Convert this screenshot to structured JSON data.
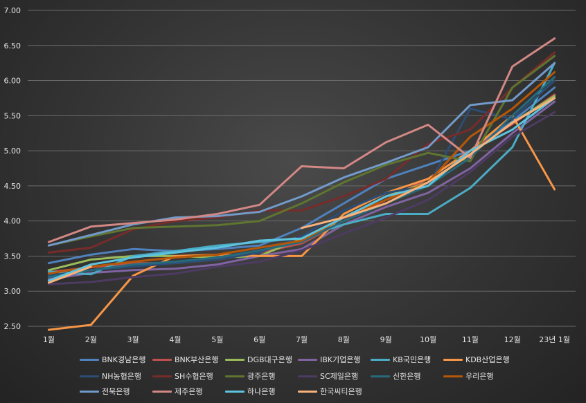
{
  "chart_data": {
    "type": "line",
    "title": "",
    "xlabel": "",
    "ylabel": "",
    "categories": [
      "1월",
      "2월",
      "3월",
      "4월",
      "5월",
      "6월",
      "7월",
      "8월",
      "9월",
      "10월",
      "11월",
      "12월",
      "23년 1월"
    ],
    "ylim": [
      2.5,
      7.0
    ],
    "yticks": [
      "2.50",
      "3.00",
      "3.50",
      "4.00",
      "4.50",
      "5.00",
      "5.50",
      "6.00",
      "6.50",
      "7.00"
    ],
    "grid": true,
    "legend_position": "bottom",
    "series": [
      {
        "name": "BNK경남은행",
        "color": "#4f81bd",
        "values": [
          3.4,
          3.52,
          3.6,
          3.57,
          3.6,
          3.65,
          3.9,
          4.25,
          4.6,
          4.8,
          5.0,
          5.42,
          5.9
        ]
      },
      {
        "name": "BNK부산은행",
        "color": "#c0504d",
        "values": [
          3.27,
          3.34,
          3.4,
          3.4,
          3.45,
          3.55,
          3.68,
          4.0,
          4.3,
          4.6,
          5.0,
          5.38,
          5.8
        ]
      },
      {
        "name": "DGB대구은행",
        "color": "#9bbb59",
        "values": [
          3.3,
          3.45,
          3.5,
          3.5,
          3.48,
          3.5,
          3.75,
          4.05,
          4.35,
          4.55,
          4.95,
          5.4,
          5.78
        ]
      },
      {
        "name": "IBK기업은행",
        "color": "#8064a2",
        "values": [
          3.17,
          3.26,
          3.3,
          3.32,
          3.38,
          3.5,
          3.6,
          3.95,
          4.2,
          4.4,
          4.75,
          5.25,
          5.7
        ]
      },
      {
        "name": "KB국민은행",
        "color": "#4bacc6",
        "values": [
          3.28,
          3.24,
          3.5,
          3.57,
          3.65,
          3.7,
          3.76,
          3.95,
          4.1,
          4.1,
          4.47,
          5.05,
          6.25
        ]
      },
      {
        "name": "KDB산업은행",
        "color": "#f79646",
        "values": [
          2.45,
          2.52,
          3.22,
          3.5,
          3.52,
          3.5,
          3.5,
          4.1,
          4.4,
          4.6,
          5.0,
          5.5,
          4.45
        ]
      },
      {
        "name": "NH농협은행",
        "color": "#2c4d75",
        "values": [
          3.22,
          3.3,
          3.35,
          3.4,
          3.45,
          3.55,
          3.78,
          4.15,
          4.4,
          4.5,
          5.6,
          5.45,
          6.0
        ]
      },
      {
        "name": "SH수협은행",
        "color": "#772c2a",
        "values": [
          3.55,
          3.62,
          3.88,
          4.0,
          4.05,
          4.15,
          4.15,
          4.35,
          4.6,
          5.1,
          5.3,
          5.9,
          6.4
        ]
      },
      {
        "name": "광주은행",
        "color": "#5f7530",
        "values": [
          3.65,
          3.78,
          3.9,
          3.92,
          3.94,
          4.0,
          4.25,
          4.55,
          4.8,
          4.97,
          4.85,
          5.9,
          6.35
        ]
      },
      {
        "name": "SC제일은행",
        "color": "#4d3b62",
        "values": [
          3.1,
          3.13,
          3.2,
          3.25,
          3.35,
          3.42,
          3.58,
          3.82,
          4.05,
          4.3,
          4.7,
          5.2,
          5.55
        ]
      },
      {
        "name": "신한은행",
        "color": "#276a7c",
        "values": [
          3.2,
          3.3,
          3.38,
          3.42,
          3.48,
          3.58,
          3.7,
          4.0,
          4.25,
          4.5,
          4.9,
          5.5,
          6.05
        ]
      },
      {
        "name": "우리은행",
        "color": "#b65708",
        "values": [
          3.25,
          3.35,
          3.42,
          3.48,
          3.52,
          3.62,
          3.72,
          4.05,
          4.3,
          4.55,
          5.2,
          5.6,
          6.12
        ]
      },
      {
        "name": "전북은행",
        "color": "#729aca",
        "values": [
          3.65,
          3.8,
          3.95,
          4.05,
          4.07,
          4.13,
          4.35,
          4.62,
          4.83,
          5.05,
          5.65,
          5.72,
          6.25
        ]
      },
      {
        "name": "제주은행",
        "color": "#d38886",
        "values": [
          3.7,
          3.92,
          3.97,
          4.02,
          4.1,
          4.23,
          4.78,
          4.75,
          5.12,
          5.37,
          4.9,
          6.2,
          6.6
        ]
      },
      {
        "name": "하나은행",
        "color": "#5dc3df",
        "values": [
          3.15,
          3.38,
          3.48,
          3.55,
          3.62,
          3.72,
          3.75,
          4.05,
          4.35,
          4.5,
          5.0,
          5.3,
          5.75
        ]
      },
      {
        "name": "한국씨티은행",
        "color": "#fab27b",
        "values": [
          3.12,
          3.35,
          null,
          null,
          null,
          null,
          3.9,
          4.05,
          4.25,
          4.55,
          4.95,
          5.4,
          5.75
        ]
      }
    ]
  }
}
